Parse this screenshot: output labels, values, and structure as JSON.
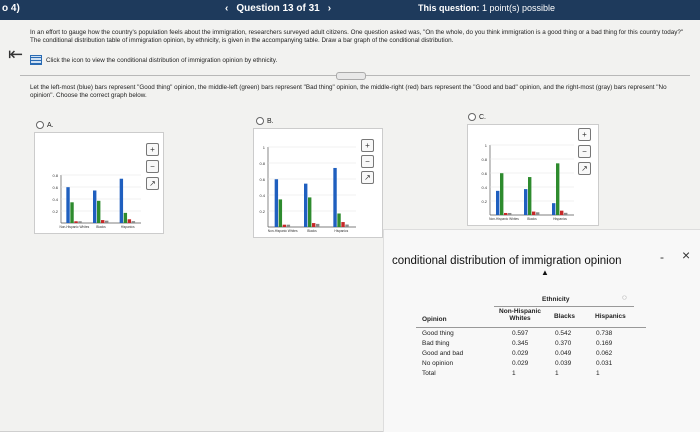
{
  "topbar": {
    "left_text": "o 4)",
    "prev_icon": "‹",
    "question_label": "Question 13 of 31",
    "next_icon": "›",
    "this_question_label": "This question:",
    "points": "1 point(s) possible"
  },
  "question": {
    "text": "In an effort to gauge how the country's population feels about the immigration, researchers surveyed adult citizens. One question asked was, \"On the whole, do you think immigration is a good thing or a bad thing for this country today?\" The conditional distribution table of immigration opinion, by ethnicity, is given in the accompanying table. Draw a bar graph of the conditional distribution.",
    "icon_text": "Click the icon to view the conditional distribution of immigration opinion by ethnicity."
  },
  "instructions": "Let the left-most (blue) bars represent \"Good thing\" opinion, the middle-left (green) bars represent \"Bad thing\" opinion, the middle-right (red) bars represent the \"Good and bad\" opinion, and the right-most (gray) bars represent \"No opinion\". Choose the correct graph below.",
  "options": [
    {
      "label": "A."
    },
    {
      "label": "B."
    },
    {
      "label": "C."
    }
  ],
  "colors": {
    "good": "#1f5fbf",
    "bad": "#2e8b2e",
    "both": "#c62828",
    "none": "#8a8a8a"
  },
  "chart_a": {
    "yticks": [
      "0.8",
      "0.6",
      "0.4",
      "0.2"
    ],
    "categories": [
      "Non-Hispanic Whites",
      "Blacks",
      "Hispanics"
    ],
    "good": [
      0.597,
      0.542,
      0.738
    ],
    "bad": [
      0.345,
      0.37,
      0.169
    ],
    "both": [
      0.029,
      0.049,
      0.062
    ],
    "none": [
      0.029,
      0.039,
      0.031
    ]
  },
  "chart_b": {
    "yticks": [
      "1",
      "0.8",
      "0.6",
      "0.4",
      "0.2"
    ],
    "categories": [
      "Non-Hispanic Whites",
      "Blacks",
      "Hispanics"
    ],
    "good": [
      0.597,
      0.542,
      0.738
    ],
    "bad": [
      0.345,
      0.37,
      0.169
    ],
    "both": [
      0.029,
      0.049,
      0.062
    ],
    "none": [
      0.029,
      0.039,
      0.031
    ]
  },
  "chart_c": {
    "yticks": [
      "1",
      "0.8",
      "0.6",
      "0.4",
      "0.2"
    ],
    "categories": [
      "Non-Hispanic Whites",
      "Blacks",
      "Hispanics"
    ],
    "good": [
      0.345,
      0.37,
      0.169
    ],
    "bad": [
      0.597,
      0.542,
      0.738
    ],
    "both": [
      0.029,
      0.049,
      0.062
    ],
    "none": [
      0.029,
      0.039,
      0.031
    ]
  },
  "popup": {
    "title": "conditional distribution of immigration opinion",
    "minimize": "-",
    "close": "×",
    "group_header": "Ethnicity",
    "columns": [
      "Opinion",
      "Non-Hispanic Whites",
      "Blacks",
      "Hispanics"
    ],
    "rows": [
      {
        "opinion": "Good thing",
        "v": [
          "0.597",
          "0.542",
          "0.738"
        ]
      },
      {
        "opinion": "Bad thing",
        "v": [
          "0.345",
          "0.370",
          "0.169"
        ]
      },
      {
        "opinion": "Good and bad",
        "v": [
          "0.029",
          "0.049",
          "0.062"
        ]
      },
      {
        "opinion": "No opinion",
        "v": [
          "0.029",
          "0.039",
          "0.031"
        ]
      },
      {
        "opinion": "Total",
        "v": [
          "1",
          "1",
          "1"
        ]
      }
    ]
  }
}
